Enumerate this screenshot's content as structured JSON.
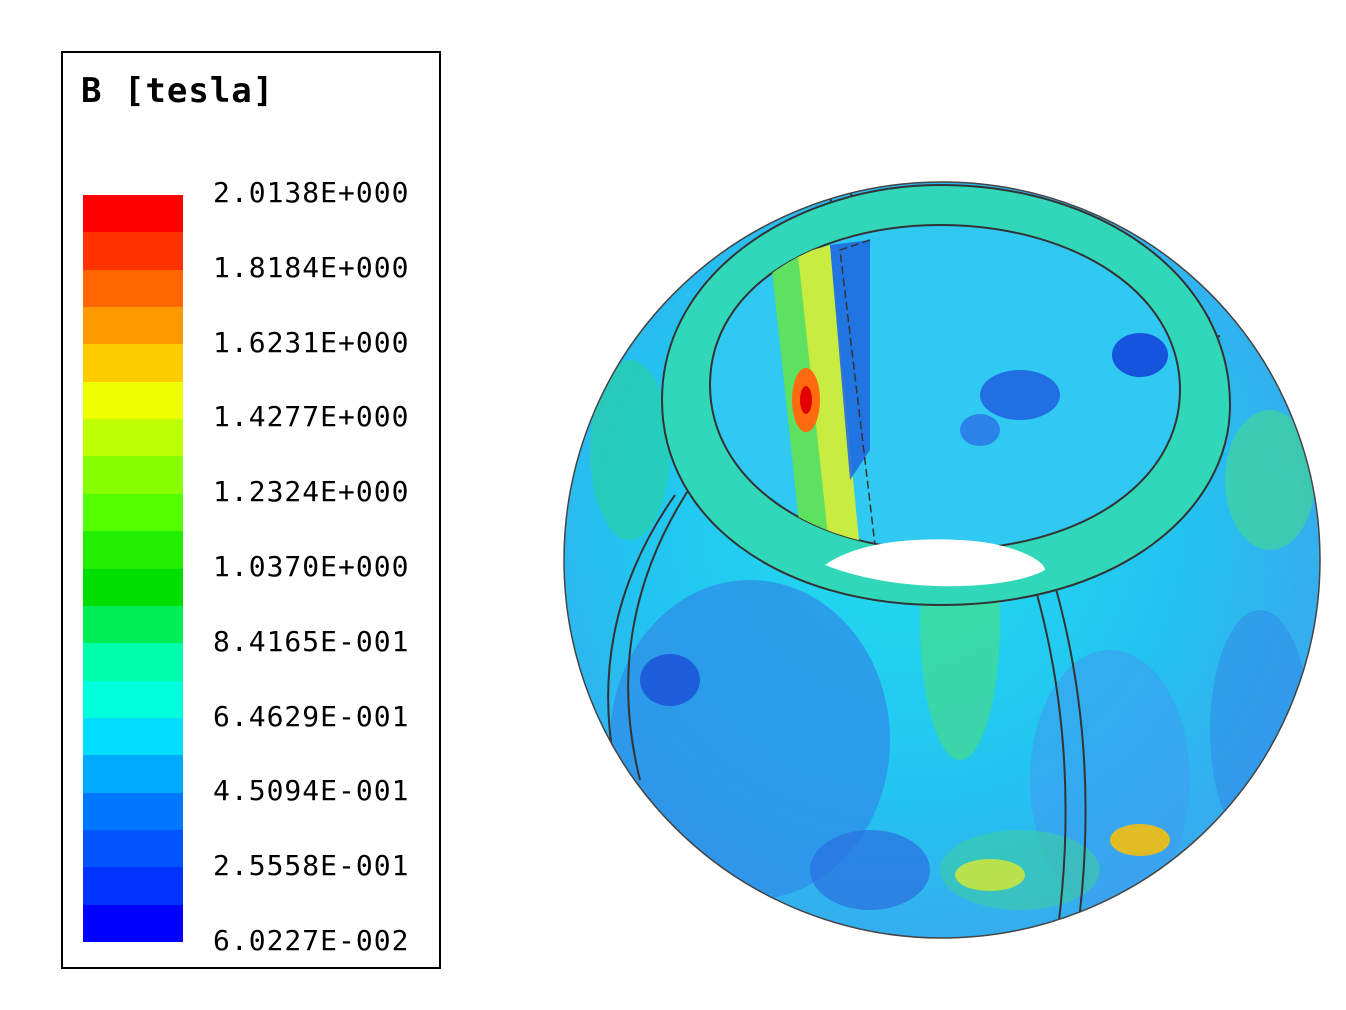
{
  "legend": {
    "title": "B [tesla]",
    "ticks": [
      "2.0138E+000",
      "1.8184E+000",
      "1.6231E+000",
      "1.4277E+000",
      "1.2324E+000",
      "1.0370E+000",
      "8.4165E-001",
      "6.4629E-001",
      "4.5094E-001",
      "2.5558E-001",
      "6.0227E-002"
    ],
    "colors": [
      "#ff0000",
      "#ff3300",
      "#ff6600",
      "#ff9900",
      "#ffcc00",
      "#eeff00",
      "#bbff00",
      "#88ff00",
      "#55ff00",
      "#22ee00",
      "#00dd00",
      "#00ee55",
      "#00ffaa",
      "#00ffdd",
      "#00ddff",
      "#00aaff",
      "#0077ff",
      "#0055ff",
      "#0033ff",
      "#0000ff"
    ]
  }
}
